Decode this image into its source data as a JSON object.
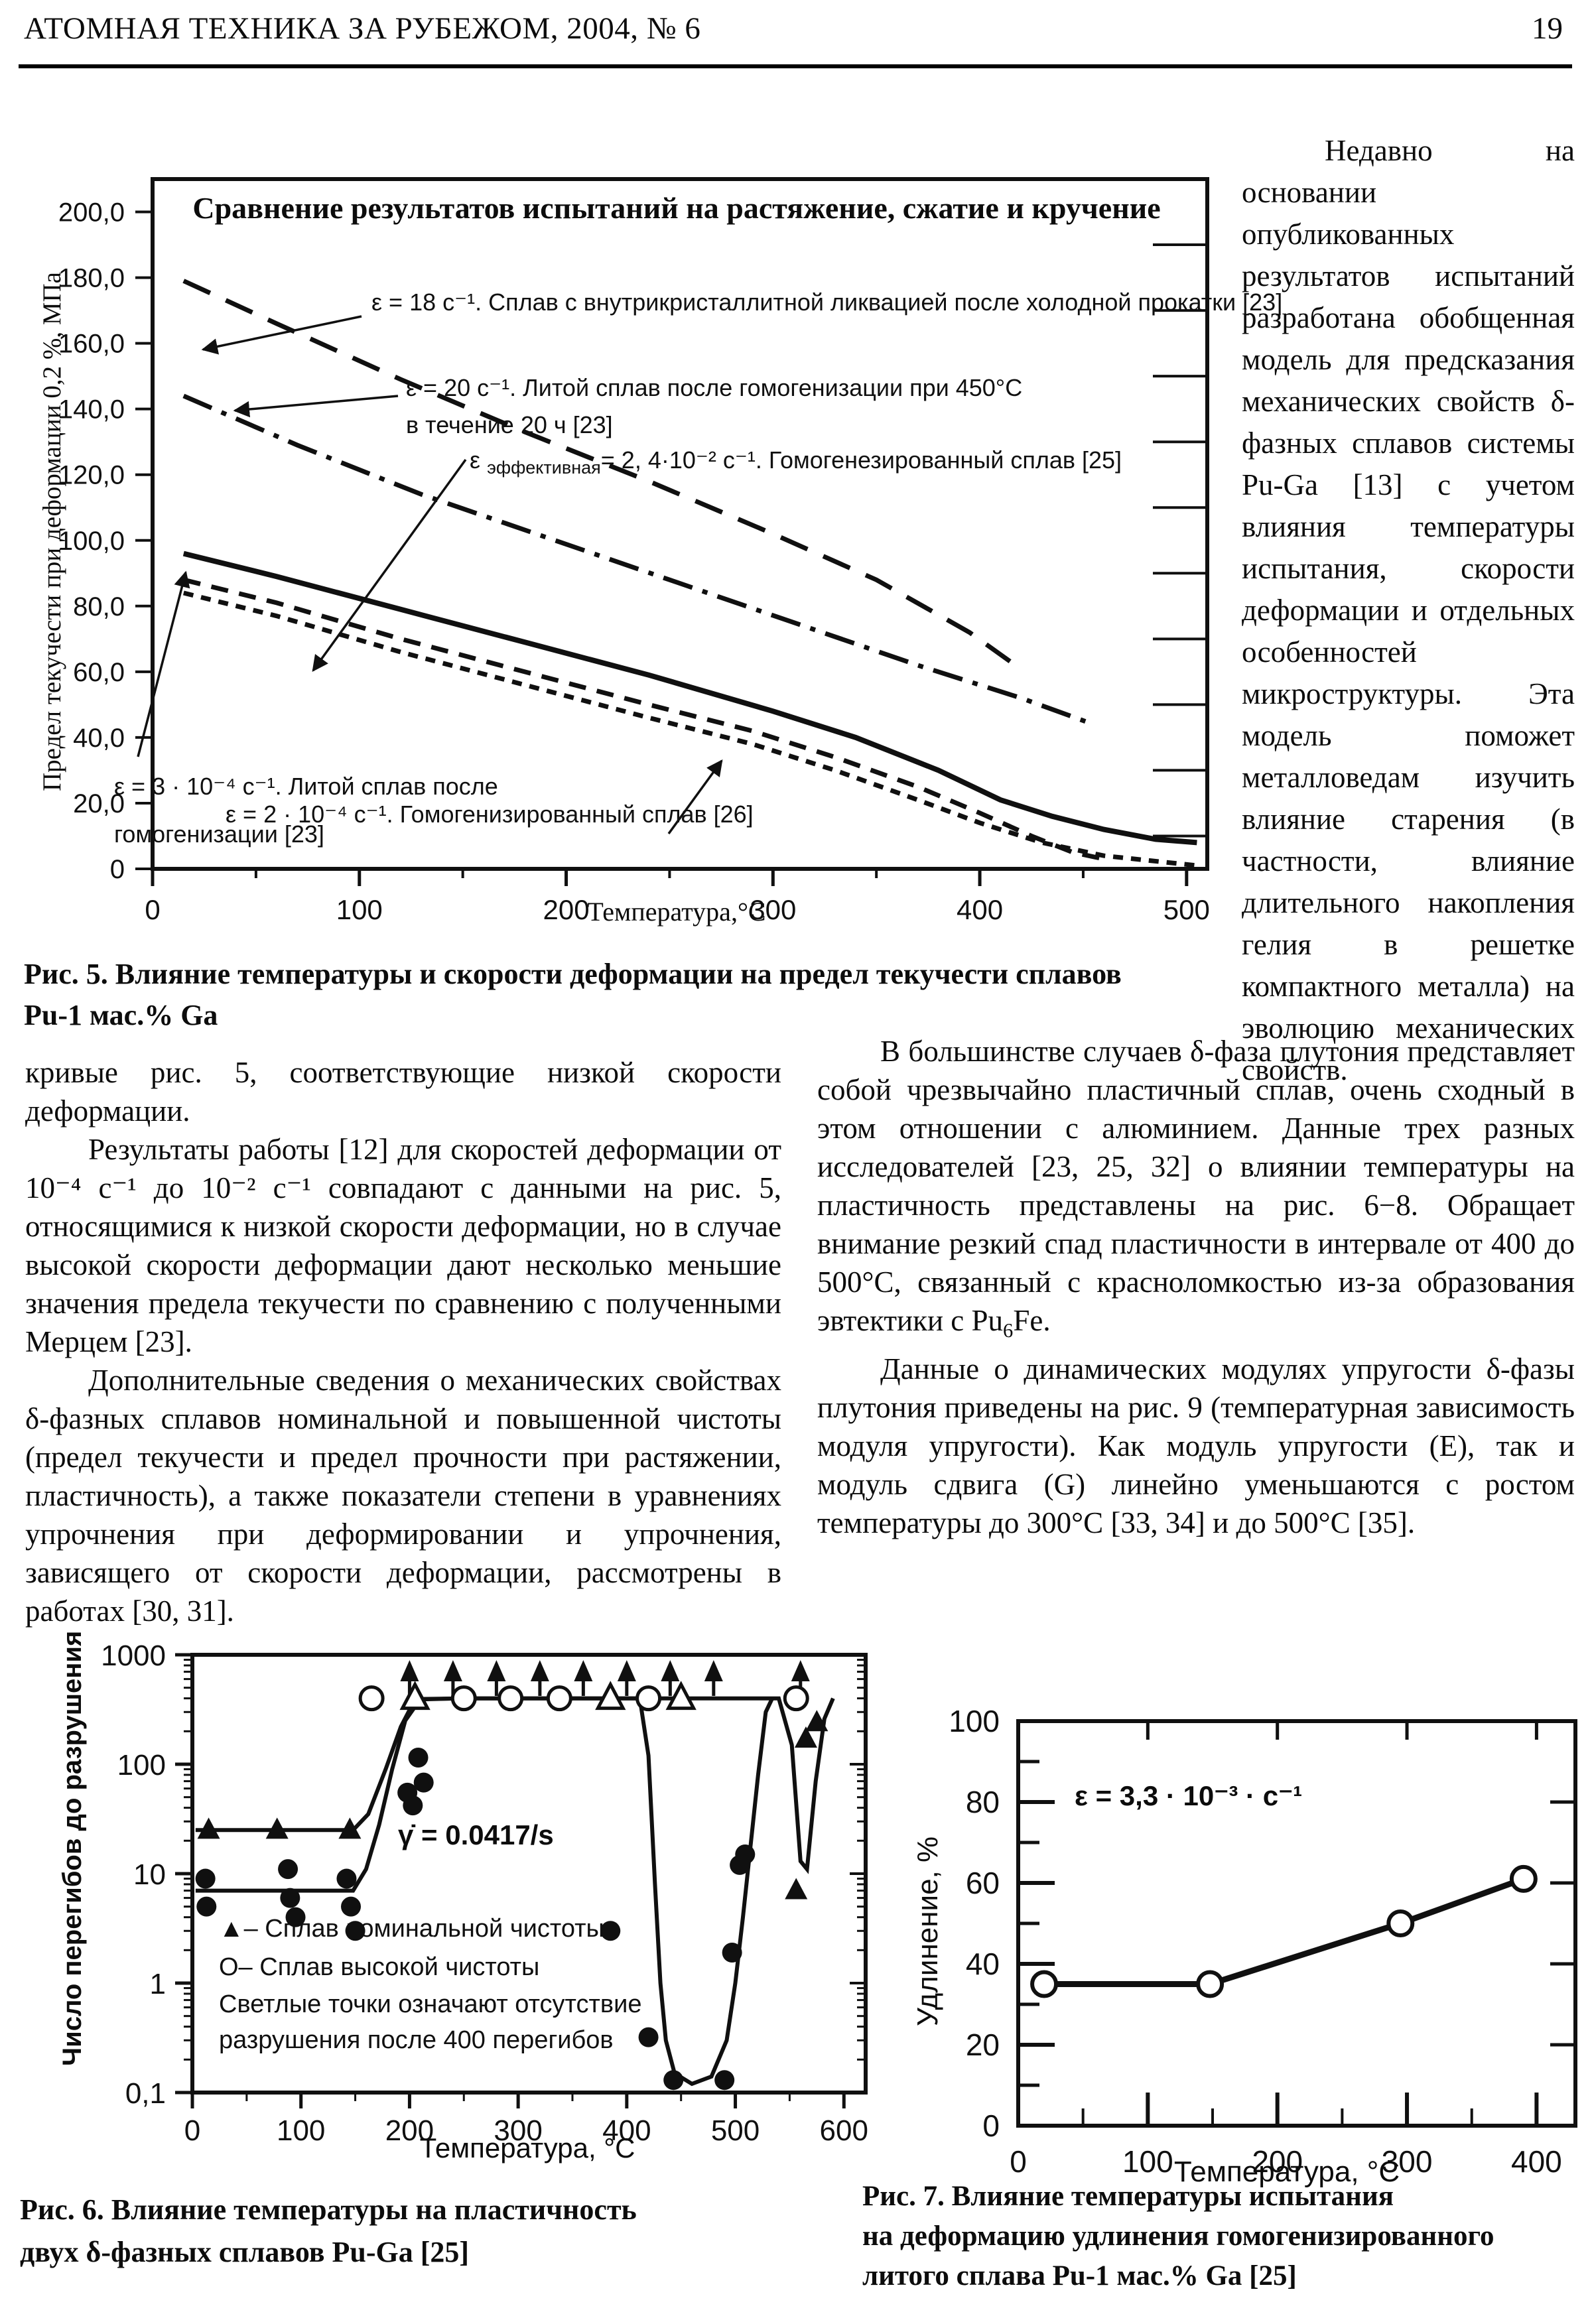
{
  "header": {
    "journal": "АТОМНАЯ ТЕХНИКА ЗА РУБЕЖОМ, 2004, № 6",
    "page": "19"
  },
  "sidebar": {
    "text": "Недавно на основании опубликованных результатов испытаний разработана обобщенная модель для предсказания механических свойств δ-фазных сплавов системы Pu-Ga [13] с учетом влияния температуры испытания, скорости деформации и отдельных особенностей микроструктуры. Эта модель поможет металловедам изучить влияние старения (в частности, влияние длительного накопления гелия в решетке компактного металла) на эволюцию механических свойств."
  },
  "columns": {
    "left": {
      "p1": "кривые рис. 5, соответствующие низкой скорости деформации.",
      "p2": "Результаты работы [12] для скоростей деформации от 10⁻⁴ с⁻¹ до 10⁻² с⁻¹ совпадают с данными на рис. 5, относящимися к низкой скорости деформации, но в случае высокой скорости деформации дают несколько меньшие значения предела текучести по сравнению с полученными Мерцем [23].",
      "p3": "Дополнительные сведения о механических свойствах δ-фазных сплавов номинальной и повышенной чистоты (предел текучести и предел прочности при растяжении, пластичность), а также показатели степени в уравнениях упрочнения при деформировании и упрочнения, зависящего от скорости деформации, рассмотрены в работах [30, 31]."
    },
    "right": {
      "p1_before": "В большинстве случаев δ-фаза плутония представляет собой чрезвычайно пластичный сплав, очень сходный в этом отношении с алюминием. Данные трех разных исследователей [23, 25, 32] о влиянии температуры на пластичность представлены на рис. 6−8. Обращает внимание резкий спад пластичности в интервале от 400 до 500°С, связанный с красноломкостью из-за образования эвтектики с Pu",
      "p1_sub": "6",
      "p1_after": "Fe.",
      "p2": "Данные о динамических модулях упругости δ-фазы плутония приведены на рис. 9 (температурная зависимость модуля упругости). Как модуль упругости (Е), так и модуль сдвига (G) линейно уменьшаются с ростом температуры до 300°С [33, 34] и до 500°С [35]."
    }
  },
  "figure5": {
    "caption": [
      "Рис. 5. Влияние температуры и скорости деформации на предел текучести сплавов",
      "Pu-1 мас.% Ga"
    ],
    "labels": {
      "l1": "ε = 18 с⁻¹. Сплав с внутрикристаллитной ликвацией после холодной прокатки [23]",
      "l2a": "ε = 20 с⁻¹. Литой сплав после гомогенизации при 450°С",
      "l2b": "в течение 20 ч [23]",
      "l3_eps": "ε",
      "l3_sub": "эффективная",
      "l3_rest": "= 2, 4·10⁻² с⁻¹. Гомогенезированный сплав [25]",
      "l4a": "ε = 3 · 10⁻⁴ с⁻¹. Литой сплав после",
      "l4b": "гомогенизации [23]",
      "l5": "ε = 2 · 10⁻⁴ с⁻¹. Гомогенизированный сплав [26]"
    },
    "chart_data": {
      "type": "line",
      "title": "Сравнение результатов испытаний на растяжение, сжатие и кручение",
      "xlabel": "Температура,°С",
      "ylabel": "Предел текучести при деформации 0,2 %, МПа",
      "xlim": [
        0,
        510
      ],
      "ylim": [
        0,
        210
      ],
      "xticks": {
        "values": [
          0,
          100,
          200,
          300,
          400,
          500
        ],
        "labels": [
          "0",
          "100",
          "200",
          "300",
          "400",
          "500"
        ]
      },
      "yticks": {
        "values": [
          200,
          180,
          160,
          140,
          120,
          100,
          80,
          60,
          40,
          20,
          0
        ],
        "labels": [
          "200,0",
          "180,0",
          "160,0",
          "140,0",
          "120,0",
          "100,0",
          "80,0",
          "60,0",
          "40,0",
          "20,0",
          "0"
        ]
      },
      "series": [
        {
          "name": "eps-18-cold-rolled",
          "style": "long-dash",
          "points": [
            [
              15,
              179
            ],
            [
              60,
              166
            ],
            [
              120,
              149
            ],
            [
              180,
              133
            ],
            [
              240,
              118
            ],
            [
              300,
              102
            ],
            [
              350,
              88
            ],
            [
              395,
              72
            ],
            [
              415,
              63
            ]
          ]
        },
        {
          "name": "eps-20-cast-homogenized-450C",
          "style": "dash-dot",
          "points": [
            [
              15,
              144
            ],
            [
              70,
              129
            ],
            [
              130,
              114
            ],
            [
              190,
              101
            ],
            [
              250,
              88
            ],
            [
              310,
              75
            ],
            [
              370,
              62
            ],
            [
              420,
              52
            ],
            [
              455,
              44
            ]
          ]
        },
        {
          "name": "eps-eff-2.4e-2-homogenized",
          "style": "solid",
          "points": [
            [
              15,
              96
            ],
            [
              60,
              89
            ],
            [
              120,
              79
            ],
            [
              180,
              69
            ],
            [
              240,
              59
            ],
            [
              300,
              48
            ],
            [
              340,
              40
            ],
            [
              380,
              30
            ],
            [
              410,
              21
            ],
            [
              435,
              16
            ],
            [
              460,
              12
            ],
            [
              485,
              9
            ],
            [
              505,
              8
            ]
          ]
        },
        {
          "name": "eps-3e-4-cast-homogenized",
          "style": "dash",
          "points": [
            [
              15,
              88
            ],
            [
              60,
              81
            ],
            [
              120,
              70
            ],
            [
              180,
              60
            ],
            [
              240,
              50
            ],
            [
              290,
              42
            ],
            [
              330,
              34
            ],
            [
              370,
              25
            ],
            [
              400,
              17
            ],
            [
              425,
              10
            ],
            [
              445,
              5
            ],
            [
              460,
              3
            ]
          ]
        },
        {
          "name": "eps-2e-4-homogenized",
          "style": "short-dash",
          "points": [
            [
              15,
              84
            ],
            [
              60,
              77
            ],
            [
              120,
              66
            ],
            [
              180,
              56
            ],
            [
              240,
              46
            ],
            [
              290,
              38
            ],
            [
              330,
              30
            ],
            [
              370,
              21
            ],
            [
              400,
              14
            ],
            [
              430,
              8
            ],
            [
              460,
              4
            ],
            [
              490,
              2
            ],
            [
              505,
              1
            ]
          ]
        }
      ]
    }
  },
  "figure6": {
    "caption": [
      "Рис. 6. Влияние температуры на пластичность",
      "двух δ-фазных сплавов Pu-Ga [25]"
    ],
    "chart_data": {
      "type": "scatter",
      "y_scale": "log",
      "xlabel": "Температура, °С",
      "ylabel": "Число перегибов до разрушения",
      "xlim": [
        0,
        620
      ],
      "ylim": [
        0.1,
        1000
      ],
      "xticks": {
        "values": [
          0,
          100,
          200,
          300,
          400,
          500,
          600
        ],
        "labels": [
          "0",
          "100",
          "200",
          "300",
          "400",
          "500",
          "600"
        ]
      },
      "yticks": {
        "values": [
          1000,
          100,
          10,
          1,
          0.1
        ],
        "labels": [
          "1000",
          "100",
          "10",
          "1",
          "0,1"
        ]
      },
      "annotation": "γ̇ = 0.0417/s",
      "legend": [
        "▲– Сплав номинальной чистоты.",
        "О– Сплав высокой чистоты",
        "Светлые точки означают отсутствие разрушения после 400 перегибов"
      ],
      "series": [
        {
          "name": "nominal-purity-curve",
          "type": "curve",
          "points": [
            [
              3,
              25
            ],
            [
              148,
              25
            ],
            [
              162,
              35
            ],
            [
              178,
              90
            ],
            [
              192,
              220
            ],
            [
              205,
              390
            ],
            [
              245,
              400
            ],
            [
              540,
              400
            ],
            [
              552,
              150
            ],
            [
              560,
              13
            ],
            [
              566,
              11
            ],
            [
              574,
              70
            ],
            [
              582,
              260
            ],
            [
              590,
              400
            ]
          ]
        },
        {
          "name": "high-purity-curve",
          "type": "curve",
          "points": [
            [
              3,
              7
            ],
            [
              148,
              7
            ],
            [
              160,
              11
            ],
            [
              172,
              28
            ],
            [
              184,
              90
            ],
            [
              196,
              250
            ],
            [
              210,
              395
            ],
            [
              250,
              400
            ],
            [
              412,
              400
            ],
            [
              420,
              120
            ],
            [
              426,
              8
            ],
            [
              431,
              1
            ],
            [
              436,
              0.3
            ],
            [
              444,
              0.15
            ],
            [
              460,
              0.12
            ],
            [
              478,
              0.14
            ],
            [
              492,
              0.3
            ],
            [
              500,
              1
            ],
            [
              507,
              4
            ],
            [
              514,
              18
            ],
            [
              521,
              80
            ],
            [
              528,
              300
            ],
            [
              534,
              400
            ]
          ]
        },
        {
          "name": "no-failure-arrows",
          "type": "up-arrow",
          "x": [
            200,
            240,
            280,
            320,
            360,
            400,
            440,
            480,
            560
          ]
        },
        {
          "name": "nominal-purity-no-failure",
          "type": "open-triangle",
          "points": [
            [
              205,
              400
            ],
            [
              385,
              400
            ],
            [
              450,
              400
            ]
          ]
        },
        {
          "name": "high-purity-no-failure",
          "type": "open-circle",
          "points": [
            [
              165,
              400
            ],
            [
              250,
              400
            ],
            [
              293,
              400
            ],
            [
              338,
              400
            ],
            [
              420,
              400
            ],
            [
              556,
              400
            ]
          ]
        },
        {
          "name": "nominal-purity-failed",
          "type": "filled-triangle",
          "points": [
            [
              15,
              25
            ],
            [
              78,
              25
            ],
            [
              145,
              25
            ],
            [
              556,
              7
            ],
            [
              565,
              170
            ],
            [
              575,
              240
            ]
          ]
        },
        {
          "name": "high-purity-failed",
          "type": "filled-circle",
          "points": [
            [
              12,
              9
            ],
            [
              13,
              5
            ],
            [
              88,
              11
            ],
            [
              90,
              6
            ],
            [
              95,
              4
            ],
            [
              142,
              9
            ],
            [
              146,
              5
            ],
            [
              150,
              3
            ],
            [
              198,
              55
            ],
            [
              203,
              42
            ],
            [
              208,
              115
            ],
            [
              213,
              68
            ],
            [
              385,
              3
            ],
            [
              420,
              0.32
            ],
            [
              443,
              0.13
            ],
            [
              490,
              0.13
            ],
            [
              497,
              1.9
            ],
            [
              504,
              12
            ],
            [
              509,
              15
            ]
          ]
        }
      ]
    }
  },
  "figure7": {
    "caption": [
      "Рис. 7. Влияние температуры испытания",
      "на деформацию удлинения гомогенизированного",
      "литого сплава Pu-1 мас.% Ga [25]"
    ],
    "chart_data": {
      "type": "line",
      "xlabel": "Температура, °С",
      "ylabel": "Удлинение, %",
      "annotation": "ε = 3,3 · 10⁻³ · с⁻¹",
      "xlim": [
        0,
        430
      ],
      "ylim": [
        0,
        100
      ],
      "xticks": {
        "values": [
          0,
          100,
          200,
          300,
          400
        ],
        "labels": [
          "0",
          "100",
          "200",
          "300",
          "400"
        ]
      },
      "yticks": {
        "values": [
          0,
          20,
          40,
          60,
          80,
          100
        ],
        "labels": [
          "0",
          "20",
          "40",
          "60",
          "80",
          "100"
        ]
      },
      "x": [
        20,
        148,
        295,
        390
      ],
      "y": [
        35,
        35,
        50,
        61
      ],
      "marker": "open-circle"
    }
  }
}
